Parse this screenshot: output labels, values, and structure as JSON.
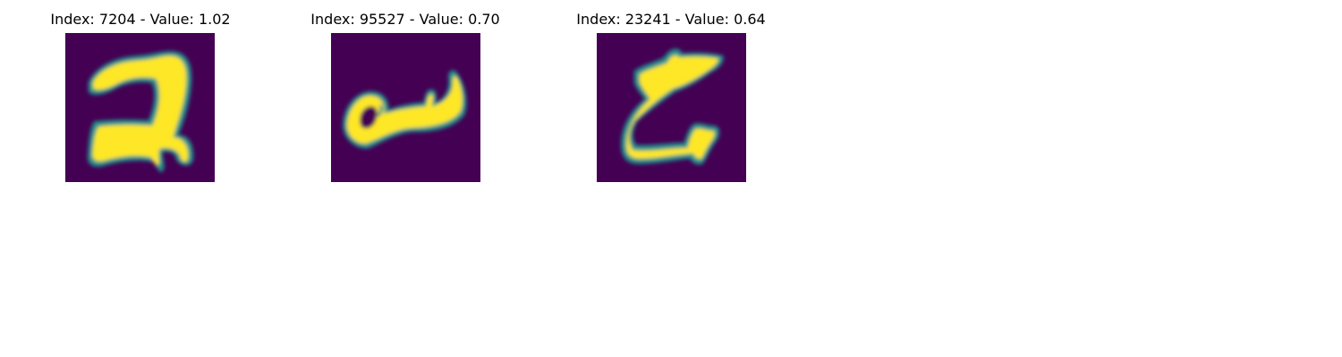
{
  "figure": {
    "colors": {
      "background": "#440154",
      "mid": "#21918c",
      "foreground": "#fde725"
    },
    "panels": [
      {
        "title": "Index: 7204 - Value: 1.02",
        "image": "handwritten-glyph-2"
      },
      {
        "title": "Index: 95527 - Value: 0.70",
        "image": "handwritten-glyph-a"
      },
      {
        "title": "Index: 23241 - Value: 0.64",
        "image": "handwritten-glyph-z"
      }
    ]
  }
}
